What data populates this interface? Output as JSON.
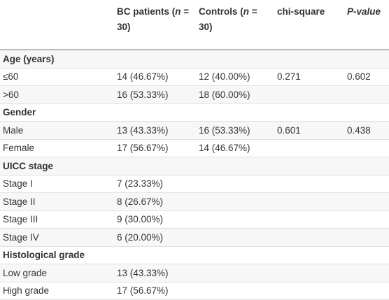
{
  "table": {
    "header": [
      [
        "BC patients (",
        "n",
        " = 30)"
      ],
      [
        "Controls (",
        "n",
        " = 30)"
      ],
      [
        "chi-square"
      ],
      [
        "P-value"
      ]
    ],
    "rows": [
      {
        "section": "Age (years)"
      },
      {
        "cells": [
          "≤60",
          "14 (46.67%)",
          "12 (40.00%)",
          "0.271",
          "0.602"
        ]
      },
      {
        "cells": [
          ">60",
          "16 (53.33%)",
          "18 (60.00%)"
        ]
      },
      {
        "section": "Gender"
      },
      {
        "cells": [
          "Male",
          "13 (43.33%)",
          "16 (53.33%)",
          "0.601",
          "0.438"
        ]
      },
      {
        "cells": [
          "Female",
          "17 (56.67%)",
          "14 (46.67%)"
        ]
      },
      {
        "section": "UICC stage"
      },
      {
        "cells": [
          "Stage I",
          "7 (23.33%)"
        ]
      },
      {
        "cells": [
          "Stage II",
          "8 (26.67%)"
        ]
      },
      {
        "cells": [
          "Stage III",
          "9 (30.00%)"
        ]
      },
      {
        "cells": [
          "Stage IV",
          "6 (20.00%)"
        ]
      },
      {
        "section": "Histological grade"
      },
      {
        "cells": [
          "Low grade",
          "13 (43.33%)"
        ]
      },
      {
        "cells": [
          "High grade",
          "17 (56.67%)"
        ]
      }
    ]
  }
}
